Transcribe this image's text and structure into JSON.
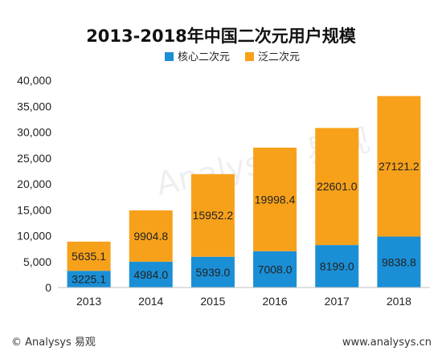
{
  "chart_data": {
    "type": "bar",
    "stacked": true,
    "title": "2013-2018年中国二次元用户规模",
    "categories": [
      "2013",
      "2014",
      "2015",
      "2016",
      "2017",
      "2018"
    ],
    "series": [
      {
        "name": "核心二次元",
        "color": "#1a8fd6",
        "values": [
          3225.1,
          4984.0,
          5939.0,
          7008.0,
          8199.0,
          9838.8
        ],
        "labels": [
          "3225.1",
          "4984.0",
          "5939.0",
          "7008.0",
          "8199.0",
          "9838.8"
        ]
      },
      {
        "name": "泛二次元",
        "color": "#f7a11b",
        "values": [
          5635.1,
          9904.8,
          15952.2,
          19998.4,
          22601.0,
          27121.2
        ],
        "labels": [
          "5635.1",
          "9904.8",
          "15952.2",
          "19998.4",
          "22601.0",
          "27121.2"
        ]
      }
    ],
    "ylim": [
      0,
      40000
    ],
    "yticks": [
      0,
      5000,
      10000,
      15000,
      20000,
      25000,
      30000,
      35000,
      40000
    ],
    "ytick_labels": [
      "0",
      "5,000",
      "10,000",
      "15,000",
      "20,000",
      "25,000",
      "30,000",
      "35,000",
      "40,000"
    ],
    "legend_position": "top-right",
    "grid": false
  },
  "footer": {
    "left": "© Analysys 易观",
    "right": "www.analysys.cn"
  },
  "watermark": "Analysys 易观"
}
